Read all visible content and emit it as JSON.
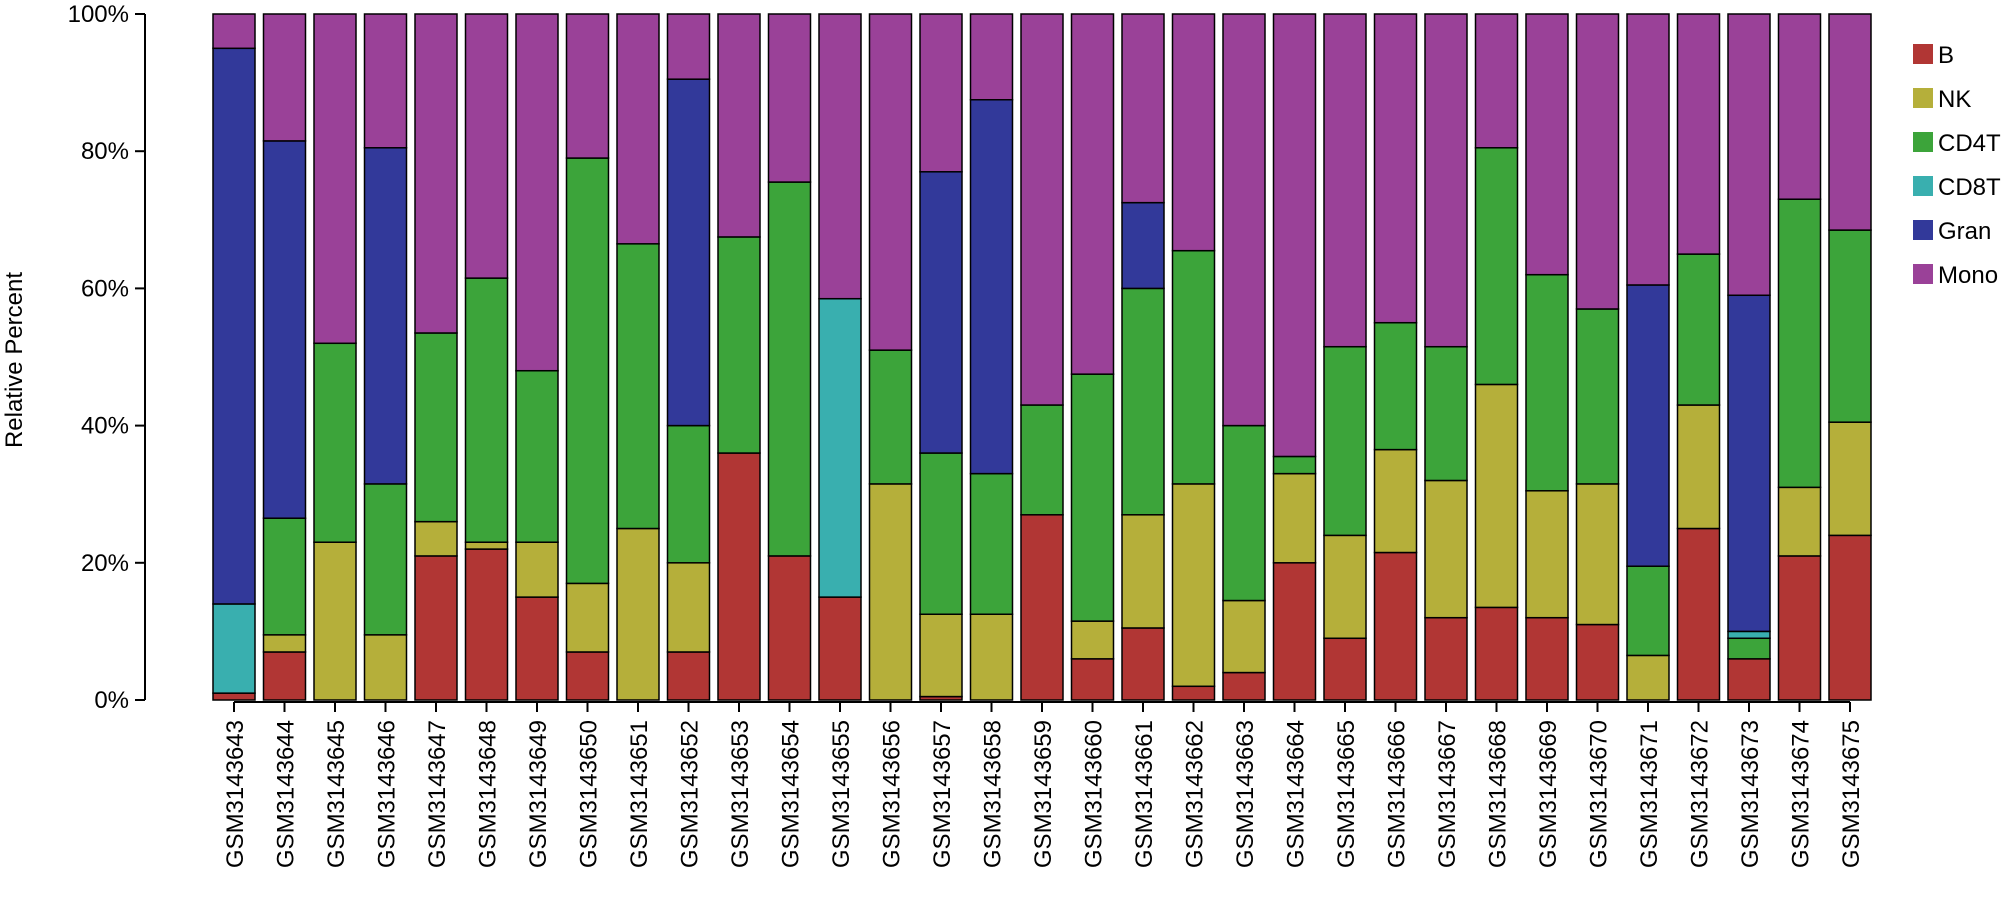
{
  "chart_data": {
    "type": "bar",
    "stacked": true,
    "percent": true,
    "title": "",
    "xlabel": "",
    "ylabel": "Relative Percent",
    "ylim": [
      0,
      100
    ],
    "yticks": [
      "0%",
      "20%",
      "40%",
      "60%",
      "80%",
      "100%"
    ],
    "legend_position": "right",
    "grid": false,
    "categories": [
      "GSM3143643",
      "GSM3143644",
      "GSM3143645",
      "GSM3143646",
      "GSM3143647",
      "GSM3143648",
      "GSM3143649",
      "GSM3143650",
      "GSM3143651",
      "GSM3143652",
      "GSM3143653",
      "GSM3143654",
      "GSM3143655",
      "GSM3143656",
      "GSM3143657",
      "GSM3143658",
      "GSM3143659",
      "GSM3143660",
      "GSM3143661",
      "GSM3143662",
      "GSM3143663",
      "GSM3143664",
      "GSM3143665",
      "GSM3143666",
      "GSM3143667",
      "GSM3143668",
      "GSM3143669",
      "GSM3143670",
      "GSM3143671",
      "GSM3143672",
      "GSM3143673",
      "GSM3143674",
      "GSM3143675"
    ],
    "series": [
      {
        "name": "B",
        "color": "#B13634",
        "values": [
          1,
          7,
          0,
          0,
          21,
          22,
          15,
          7,
          0,
          7,
          36,
          21,
          15,
          0,
          0.5,
          0,
          27,
          6,
          10.5,
          2,
          4,
          20,
          9,
          21.5,
          12,
          13.5,
          12,
          11,
          0,
          25,
          6,
          21,
          24
        ]
      },
      {
        "name": "NK",
        "color": "#B5AF3A",
        "values": [
          0,
          2.5,
          23,
          9.5,
          5,
          1,
          8,
          10,
          25,
          13,
          0,
          0,
          0,
          31.5,
          12,
          12.5,
          0,
          5.5,
          16.5,
          29.5,
          10.5,
          13,
          15,
          15,
          20,
          32.5,
          18.5,
          20.5,
          6.5,
          18,
          0,
          10,
          16.5
        ]
      },
      {
        "name": "CD4T",
        "color": "#3CA43A",
        "values": [
          0,
          17,
          29,
          22,
          27.5,
          38.5,
          25,
          62,
          41.5,
          20,
          31.5,
          54.5,
          0,
          19.5,
          23.5,
          20.5,
          16,
          36,
          33,
          34,
          25.5,
          2.5,
          27.5,
          18.5,
          19.5,
          34.5,
          31.5,
          25.5,
          13,
          22,
          3,
          42,
          28
        ]
      },
      {
        "name": "CD8T",
        "color": "#39AFAF",
        "values": [
          13,
          0,
          0,
          0,
          0,
          0,
          0,
          0,
          0,
          0,
          0,
          0,
          43.5,
          0,
          0,
          0,
          0,
          0,
          0,
          0,
          0,
          0,
          0,
          0,
          0,
          0,
          0,
          0,
          0,
          0,
          1,
          0,
          0
        ]
      },
      {
        "name": "Gran",
        "color": "#32399A",
        "values": [
          81,
          55,
          0,
          49,
          0,
          0,
          0,
          0,
          0,
          50.5,
          0,
          0,
          0,
          0,
          41,
          54.5,
          0,
          0,
          12.5,
          0,
          0,
          0,
          0,
          0,
          0,
          0,
          0,
          0,
          41,
          0,
          49,
          0,
          0
        ]
      },
      {
        "name": "Mono",
        "color": "#9A4198",
        "values": [
          5,
          18.5,
          48,
          19.5,
          46.5,
          38.5,
          52,
          21,
          33.5,
          9.5,
          32.5,
          24.5,
          41.5,
          49,
          23,
          12.5,
          57,
          52.5,
          27.5,
          34.5,
          60,
          64.5,
          48.5,
          45,
          48.5,
          19.5,
          38,
          43,
          39.5,
          35,
          41,
          27,
          31.5
        ]
      }
    ]
  }
}
